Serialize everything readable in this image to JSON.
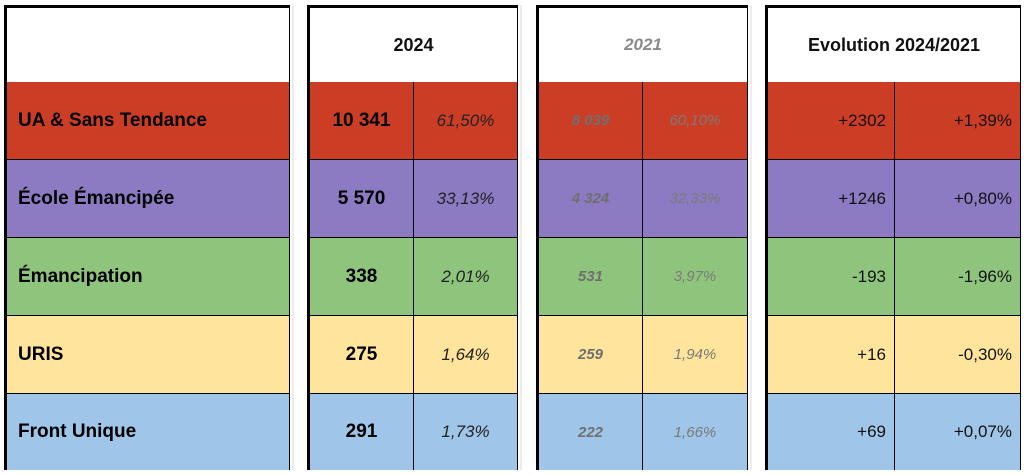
{
  "header": {
    "y2024": "2024",
    "y2021": "2021",
    "evolution": "Evolution 2024/2021"
  },
  "colors": {
    "ua": "#cc3d25",
    "ecole": "#8c7ac2",
    "emancipation": "#8fc47d",
    "uris": "#ffe59c",
    "front": "#9fc5e8"
  },
  "rows": [
    {
      "name": "UA & Sans Tendance",
      "v2024": "10 341",
      "p2024": "61,50%",
      "v2021": "8 039",
      "p2021": "60,10%",
      "dv": "+2302",
      "dp": "+1,39%",
      "color": "#cc3d25"
    },
    {
      "name": "École Émancipée",
      "v2024": "5 570",
      "p2024": "33,13%",
      "v2021": "4 324",
      "p2021": "32,33%",
      "dv": "+1246",
      "dp": "+0,80%",
      "color": "#8c7ac2"
    },
    {
      "name": "Émancipation",
      "v2024": "338",
      "p2024": "2,01%",
      "v2021": "531",
      "p2021": "3,97%",
      "dv": "-193",
      "dp": "-1,96%",
      "color": "#8fc47d"
    },
    {
      "name": "URIS",
      "v2024": "275",
      "p2024": "1,64%",
      "v2021": "259",
      "p2021": "1,94%",
      "dv": "+16",
      "dp": "-0,30%",
      "color": "#ffe59c"
    },
    {
      "name": "Front Unique",
      "v2024": "291",
      "p2024": "1,73%",
      "v2021": "222",
      "p2021": "1,66%",
      "dv": "+69",
      "dp": "+0,07%",
      "color": "#9fc5e8"
    }
  ]
}
